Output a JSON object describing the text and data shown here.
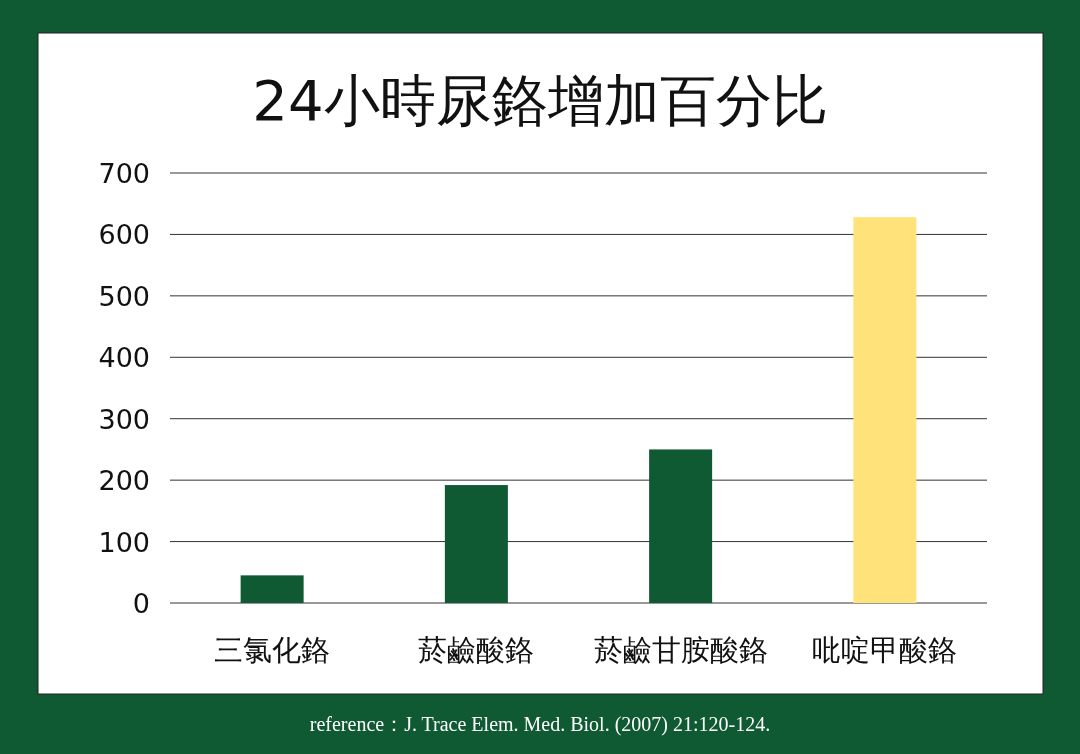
{
  "chart_data": {
    "type": "bar",
    "title": "24小時尿鉻增加百分比",
    "categories": [
      "三氯化鉻",
      "菸鹼酸鉻",
      "菸鹼甘胺酸鉻",
      "吡啶甲酸鉻"
    ],
    "values": [
      45,
      192,
      250,
      628
    ],
    "colors": [
      "#0f5a33",
      "#0f5a33",
      "#0f5a33",
      "#ffe37a"
    ],
    "ylim": [
      0,
      700
    ],
    "yticks": [
      0,
      100,
      200,
      300,
      400,
      500,
      600,
      700
    ],
    "grid": "y",
    "annotations": [
      "reference：J. Trace Elem. Med. Biol. (2007) 21:120-124."
    ]
  }
}
